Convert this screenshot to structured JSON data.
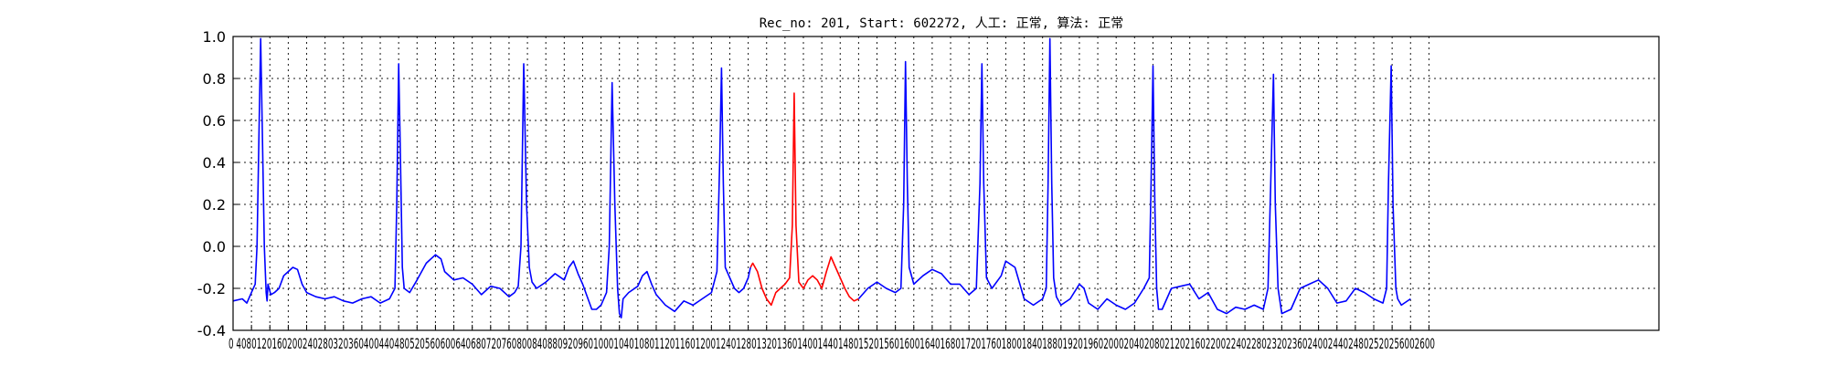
{
  "chart_data": {
    "type": "line",
    "title": "Rec_no: 201, Start: 602272, 人工: 正常, 算法: 正常",
    "xlabel": "",
    "ylabel": "",
    "xlim": [
      0,
      3100
    ],
    "ylim": [
      -0.4,
      1.0
    ],
    "grid": true,
    "y_ticks": [
      -0.4,
      -0.2,
      0.0,
      0.2,
      0.4,
      0.6,
      0.8,
      1.0
    ],
    "y_tick_labels": [
      "-0.4",
      "-0.2",
      "0.0",
      "0.2",
      "0.4",
      "0.6",
      "0.8",
      "1.0"
    ],
    "x_ticks": [
      0,
      40,
      80,
      120,
      160,
      200,
      240,
      280,
      320,
      360,
      400,
      440,
      480,
      520,
      560,
      600,
      640,
      680,
      720,
      760,
      800,
      840,
      880,
      920,
      960,
      1000,
      1040,
      1080,
      1120,
      1160,
      1200,
      1240,
      1280,
      1320,
      1360,
      1400,
      1440,
      1480,
      1520,
      1560,
      1600,
      1640,
      1680,
      1720,
      1760,
      1800,
      1840,
      1880,
      1920,
      1960,
      2000,
      2040,
      2080,
      2120,
      2160,
      2200,
      2240,
      2280,
      2320,
      2360,
      2400,
      2440,
      2480,
      2520,
      2560,
      2600
    ],
    "x_tick_labels_text": "0 4080120160200240280320360400440480520560600640680720760800840880920960100010401080112011601200124012801320136014001440148015201560160016401680172017601800184018801920196020002040208021202160220022402280232023602400244024802520256002600",
    "series": [
      {
        "color": "#0000ff",
        "points": [
          [
            0,
            -0.26
          ],
          [
            20,
            -0.25
          ],
          [
            30,
            -0.27
          ],
          [
            40,
            -0.22
          ],
          [
            48,
            -0.18
          ],
          [
            52,
            0.0
          ],
          [
            56,
            0.5
          ],
          [
            60,
            0.99
          ],
          [
            64,
            0.5
          ],
          [
            68,
            0.0
          ],
          [
            72,
            -0.22
          ],
          [
            74,
            -0.26
          ],
          [
            76,
            -0.18
          ],
          [
            82,
            -0.23
          ],
          [
            90,
            -0.22
          ],
          [
            100,
            -0.2
          ],
          [
            110,
            -0.14
          ],
          [
            120,
            -0.12
          ],
          [
            130,
            -0.1
          ],
          [
            140,
            -0.11
          ],
          [
            150,
            -0.18
          ],
          [
            160,
            -0.22
          ],
          [
            180,
            -0.24
          ],
          [
            200,
            -0.25
          ],
          [
            220,
            -0.24
          ],
          [
            240,
            -0.26
          ],
          [
            260,
            -0.27
          ],
          [
            280,
            -0.25
          ],
          [
            300,
            -0.24
          ],
          [
            320,
            -0.27
          ],
          [
            340,
            -0.25
          ],
          [
            352,
            -0.2
          ],
          [
            356,
            0.2
          ],
          [
            360,
            0.87
          ],
          [
            364,
            0.4
          ],
          [
            368,
            -0.1
          ],
          [
            372,
            -0.2
          ],
          [
            384,
            -0.22
          ],
          [
            400,
            -0.16
          ],
          [
            420,
            -0.08
          ],
          [
            440,
            -0.04
          ],
          [
            452,
            -0.06
          ],
          [
            460,
            -0.12
          ],
          [
            480,
            -0.16
          ],
          [
            500,
            -0.15
          ],
          [
            520,
            -0.18
          ],
          [
            540,
            -0.23
          ],
          [
            560,
            -0.19
          ],
          [
            580,
            -0.2
          ],
          [
            600,
            -0.24
          ],
          [
            612,
            -0.22
          ],
          [
            620,
            -0.19
          ],
          [
            626,
            0.0
          ],
          [
            632,
            0.87
          ],
          [
            638,
            0.2
          ],
          [
            644,
            -0.1
          ],
          [
            650,
            -0.17
          ],
          [
            660,
            -0.2
          ],
          [
            680,
            -0.17
          ],
          [
            700,
            -0.13
          ],
          [
            720,
            -0.16
          ],
          [
            730,
            -0.1
          ],
          [
            740,
            -0.07
          ],
          [
            750,
            -0.13
          ],
          [
            760,
            -0.18
          ],
          [
            780,
            -0.3
          ],
          [
            790,
            -0.3
          ],
          [
            800,
            -0.28
          ],
          [
            812,
            -0.22
          ],
          [
            818,
            0.0
          ],
          [
            824,
            0.78
          ],
          [
            830,
            0.2
          ],
          [
            836,
            -0.2
          ],
          [
            840,
            -0.32
          ],
          [
            844,
            -0.34
          ],
          [
            848,
            -0.25
          ],
          [
            860,
            -0.22
          ],
          [
            880,
            -0.19
          ],
          [
            890,
            -0.14
          ],
          [
            900,
            -0.12
          ],
          [
            910,
            -0.18
          ],
          [
            920,
            -0.23
          ],
          [
            940,
            -0.28
          ],
          [
            960,
            -0.31
          ],
          [
            980,
            -0.26
          ],
          [
            1000,
            -0.28
          ],
          [
            1020,
            -0.25
          ],
          [
            1040,
            -0.22
          ],
          [
            1052,
            -0.12
          ],
          [
            1058,
            0.4
          ],
          [
            1062,
            0.85
          ],
          [
            1066,
            0.3
          ],
          [
            1070,
            -0.1
          ],
          [
            1080,
            -0.15
          ],
          [
            1090,
            -0.2
          ],
          [
            1100,
            -0.22
          ],
          [
            1110,
            -0.2
          ],
          [
            1120,
            -0.15
          ],
          [
            1125,
            -0.1
          ]
        ]
      },
      {
        "color": "#ff0000",
        "points": [
          [
            1125,
            -0.1
          ],
          [
            1130,
            -0.08
          ],
          [
            1140,
            -0.12
          ],
          [
            1150,
            -0.2
          ],
          [
            1160,
            -0.25
          ],
          [
            1170,
            -0.28
          ],
          [
            1180,
            -0.22
          ],
          [
            1190,
            -0.2
          ],
          [
            1200,
            -0.18
          ],
          [
            1210,
            -0.15
          ],
          [
            1216,
            0.1
          ],
          [
            1220,
            0.73
          ],
          [
            1224,
            0.1
          ],
          [
            1230,
            -0.17
          ],
          [
            1240,
            -0.2
          ],
          [
            1250,
            -0.16
          ],
          [
            1260,
            -0.14
          ],
          [
            1270,
            -0.16
          ],
          [
            1280,
            -0.2
          ],
          [
            1290,
            -0.12
          ],
          [
            1300,
            -0.05
          ],
          [
            1310,
            -0.1
          ],
          [
            1320,
            -0.15
          ],
          [
            1330,
            -0.2
          ],
          [
            1340,
            -0.24
          ],
          [
            1350,
            -0.26
          ],
          [
            1360,
            -0.25
          ]
        ]
      },
      {
        "color": "#0000ff",
        "points": [
          [
            1360,
            -0.25
          ],
          [
            1380,
            -0.2
          ],
          [
            1400,
            -0.17
          ],
          [
            1420,
            -0.2
          ],
          [
            1440,
            -0.22
          ],
          [
            1452,
            -0.2
          ],
          [
            1458,
            0.2
          ],
          [
            1462,
            0.88
          ],
          [
            1466,
            0.3
          ],
          [
            1470,
            -0.1
          ],
          [
            1480,
            -0.18
          ],
          [
            1500,
            -0.14
          ],
          [
            1520,
            -0.11
          ],
          [
            1540,
            -0.13
          ],
          [
            1560,
            -0.18
          ],
          [
            1580,
            -0.18
          ],
          [
            1600,
            -0.23
          ],
          [
            1616,
            -0.2
          ],
          [
            1624,
            0.3
          ],
          [
            1628,
            0.87
          ],
          [
            1632,
            0.3
          ],
          [
            1638,
            -0.15
          ],
          [
            1650,
            -0.2
          ],
          [
            1670,
            -0.14
          ],
          [
            1680,
            -0.07
          ],
          [
            1700,
            -0.1
          ],
          [
            1720,
            -0.25
          ],
          [
            1740,
            -0.28
          ],
          [
            1760,
            -0.25
          ],
          [
            1768,
            -0.2
          ],
          [
            1772,
            0.3
          ],
          [
            1776,
            0.99
          ],
          [
            1780,
            0.3
          ],
          [
            1784,
            -0.15
          ],
          [
            1790,
            -0.24
          ],
          [
            1800,
            -0.28
          ],
          [
            1820,
            -0.25
          ],
          [
            1840,
            -0.18
          ],
          [
            1850,
            -0.2
          ],
          [
            1860,
            -0.27
          ],
          [
            1880,
            -0.3
          ],
          [
            1900,
            -0.25
          ],
          [
            1920,
            -0.28
          ],
          [
            1940,
            -0.3
          ],
          [
            1960,
            -0.27
          ],
          [
            1980,
            -0.2
          ],
          [
            1992,
            -0.15
          ],
          [
            1996,
            0.3
          ],
          [
            2000,
            0.86
          ],
          [
            2004,
            0.2
          ],
          [
            2008,
            -0.2
          ],
          [
            2012,
            -0.3
          ],
          [
            2020,
            -0.3
          ],
          [
            2040,
            -0.2
          ],
          [
            2060,
            -0.19
          ],
          [
            2080,
            -0.18
          ],
          [
            2100,
            -0.25
          ],
          [
            2120,
            -0.22
          ],
          [
            2140,
            -0.3
          ],
          [
            2160,
            -0.32
          ],
          [
            2180,
            -0.29
          ],
          [
            2200,
            -0.3
          ],
          [
            2220,
            -0.28
          ],
          [
            2240,
            -0.3
          ],
          [
            2250,
            -0.2
          ],
          [
            2256,
            0.3
          ],
          [
            2262,
            0.82
          ],
          [
            2266,
            0.2
          ],
          [
            2272,
            -0.2
          ],
          [
            2280,
            -0.32
          ],
          [
            2300,
            -0.3
          ],
          [
            2320,
            -0.2
          ],
          [
            2340,
            -0.18
          ],
          [
            2360,
            -0.16
          ],
          [
            2380,
            -0.2
          ],
          [
            2400,
            -0.27
          ],
          [
            2420,
            -0.26
          ],
          [
            2440,
            -0.2
          ],
          [
            2460,
            -0.22
          ],
          [
            2480,
            -0.25
          ],
          [
            2500,
            -0.27
          ],
          [
            2508,
            -0.2
          ],
          [
            2512,
            0.3
          ],
          [
            2518,
            0.86
          ],
          [
            2522,
            0.2
          ],
          [
            2528,
            -0.2
          ],
          [
            2532,
            -0.25
          ],
          [
            2540,
            -0.28
          ],
          [
            2560,
            -0.25
          ]
        ]
      }
    ]
  }
}
